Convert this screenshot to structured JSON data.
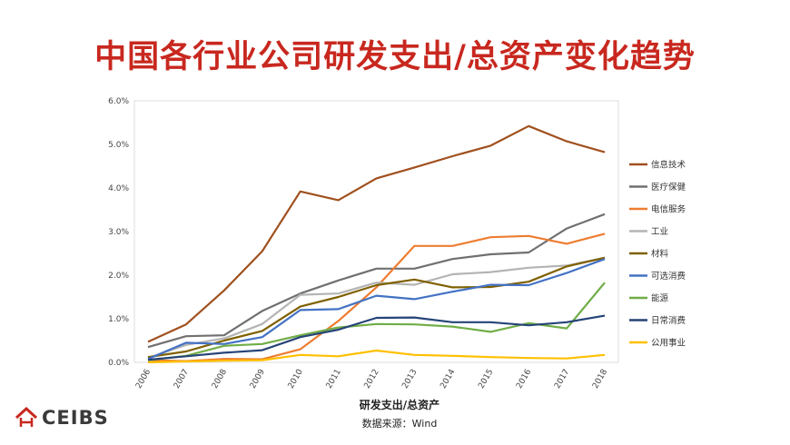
{
  "page_title": "中国各行业公司研发支出/总资产变化趋势",
  "logo": {
    "text": "CEIBS"
  },
  "chart_data": {
    "type": "line",
    "x": [
      "2006",
      "2007",
      "2008",
      "2009",
      "2010",
      "2011",
      "2012",
      "2013",
      "2014",
      "2015",
      "2016",
      "2017",
      "2018"
    ],
    "ylim": [
      0,
      6.0
    ],
    "yticks": [
      "0.0%",
      "1.0%",
      "2.0%",
      "3.0%",
      "4.0%",
      "5.0%",
      "6.0%"
    ],
    "xlabel": "研发支出/总资产",
    "source": "数据来源：Wind",
    "grid": "none",
    "legend_position": "right",
    "series": [
      {
        "name": "信息技术",
        "color": "#a0501e",
        "values": [
          0.47,
          0.87,
          1.65,
          2.55,
          3.92,
          3.72,
          4.22,
          4.47,
          4.73,
          4.97,
          5.42,
          5.07,
          4.82
        ]
      },
      {
        "name": "医疗保健",
        "color": "#707070",
        "values": [
          0.35,
          0.6,
          0.62,
          1.18,
          1.58,
          1.88,
          2.15,
          2.15,
          2.37,
          2.48,
          2.52,
          3.07,
          3.4
        ]
      },
      {
        "name": "电信服务",
        "color": "#ed7d31",
        "values": [
          0.05,
          0.03,
          0.08,
          0.07,
          0.3,
          0.95,
          1.72,
          2.67,
          2.67,
          2.87,
          2.9,
          2.72,
          2.95
        ]
      },
      {
        "name": "工业",
        "color": "#b4b4b4",
        "values": [
          0.1,
          0.4,
          0.55,
          0.88,
          1.55,
          1.58,
          1.83,
          1.78,
          2.02,
          2.07,
          2.17,
          2.22,
          2.4
        ]
      },
      {
        "name": "材料",
        "color": "#7f6000",
        "values": [
          0.12,
          0.25,
          0.5,
          0.72,
          1.28,
          1.5,
          1.77,
          1.9,
          1.72,
          1.73,
          1.85,
          2.2,
          2.4
        ]
      },
      {
        "name": "可选消费",
        "color": "#4472c4",
        "values": [
          0.08,
          0.45,
          0.42,
          0.58,
          1.2,
          1.22,
          1.53,
          1.45,
          1.62,
          1.78,
          1.77,
          2.05,
          2.37
        ]
      },
      {
        "name": "能源",
        "color": "#70ad47",
        "values": [
          0.05,
          0.15,
          0.38,
          0.42,
          0.62,
          0.8,
          0.88,
          0.87,
          0.82,
          0.7,
          0.9,
          0.78,
          1.83
        ]
      },
      {
        "name": "日常消费",
        "color": "#264478",
        "values": [
          0.06,
          0.14,
          0.22,
          0.28,
          0.58,
          0.75,
          1.02,
          1.03,
          0.92,
          0.92,
          0.85,
          0.92,
          1.07
        ]
      },
      {
        "name": "公用事业",
        "color": "#ffc000",
        "values": [
          0.0,
          0.02,
          0.04,
          0.05,
          0.17,
          0.14,
          0.27,
          0.17,
          0.15,
          0.12,
          0.1,
          0.09,
          0.17
        ]
      }
    ]
  }
}
